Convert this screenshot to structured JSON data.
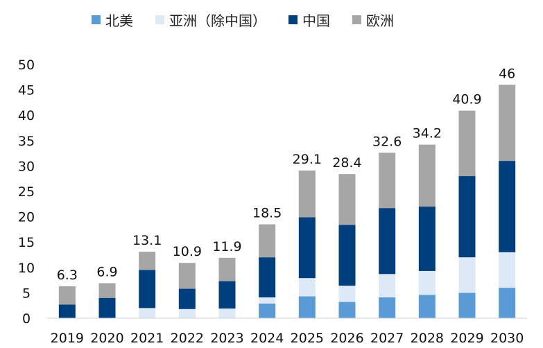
{
  "chart_data": {
    "type": "bar",
    "stacked": true,
    "categories": [
      "2019",
      "2020",
      "2021",
      "2022",
      "2023",
      "2024",
      "2025",
      "2026",
      "2027",
      "2028",
      "2029",
      "2030"
    ],
    "series": [
      {
        "name": "北美",
        "color": "#5b9bd5",
        "values": [
          0,
          0,
          0,
          0,
          0,
          2.9,
          4.3,
          3.2,
          4.1,
          4.6,
          5.0,
          6.0
        ]
      },
      {
        "name": "亚洲（除中国）",
        "color": "#dde9f6",
        "values": [
          0,
          0,
          2.0,
          1.8,
          1.9,
          1.2,
          3.6,
          3.2,
          4.6,
          4.7,
          7.0,
          7.0
        ]
      },
      {
        "name": "中国",
        "color": "#003f7d",
        "values": [
          2.7,
          4.0,
          7.5,
          4.0,
          5.4,
          7.9,
          12.0,
          12.0,
          13.0,
          12.7,
          16.0,
          18.0
        ]
      },
      {
        "name": "欧洲",
        "color": "#a6a6a6",
        "values": [
          3.6,
          2.9,
          3.6,
          5.1,
          4.6,
          6.5,
          9.2,
          10.0,
          10.9,
          12.2,
          12.9,
          15.0
        ]
      }
    ],
    "totals": [
      "6.3",
      "6.9",
      "13.1",
      "10.9",
      "11.9",
      "18.5",
      "29.1",
      "28.4",
      "32.6",
      "34.2",
      "40.9",
      "46"
    ],
    "yticks": [
      "0",
      "5",
      "10",
      "15",
      "20",
      "25",
      "30",
      "35",
      "40",
      "45",
      "50"
    ],
    "ylim": [
      0,
      50
    ],
    "legend_position": "top"
  }
}
